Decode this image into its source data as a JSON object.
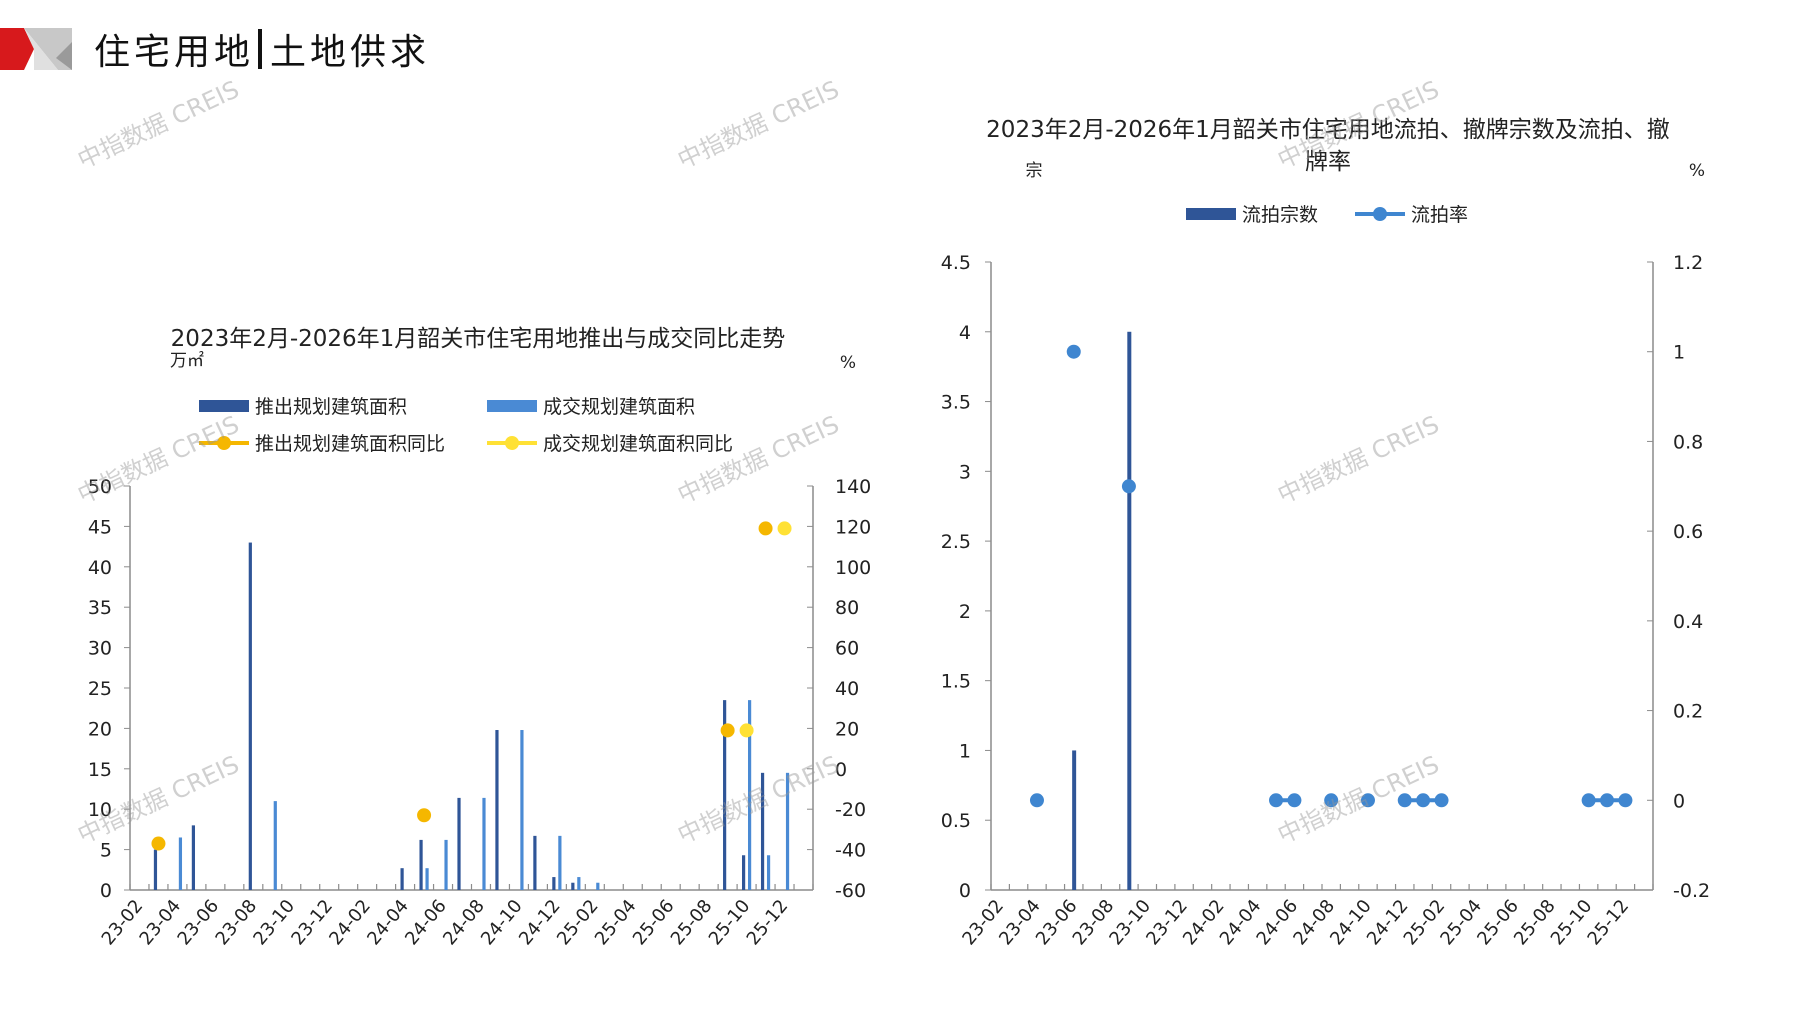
{
  "header": {
    "title_left": "住宅用地",
    "title_right": "土地供求"
  },
  "watermark": "中指数据 CREIS",
  "colors": {
    "launch_bar": "#2f5597",
    "deal_bar": "#4a8ad4",
    "launch_yoy": "#f5b700",
    "deal_yoy": "#ffe135",
    "fail_bar": "#2f5597",
    "fail_rate": "#3f86d0",
    "axis": "#8c8c8c",
    "logo_red": "#d7191c",
    "logo_grey": "#bfbfbf"
  },
  "chart_data": [
    {
      "type": "bar+line",
      "title": "2023年2月-2026年1月韶关市住宅用地推出与成交同比走势",
      "ylabel": "万㎡",
      "y2label": "%",
      "ylim": [
        0,
        50
      ],
      "y2lim": [
        -60,
        140
      ],
      "yticks": [
        "0",
        "5",
        "10",
        "15",
        "20",
        "25",
        "30",
        "35",
        "40",
        "45",
        "50"
      ],
      "y2ticks": [
        "-60",
        "-40",
        "-20",
        "0",
        "20",
        "40",
        "60",
        "80",
        "100",
        "120",
        "140"
      ],
      "categories": [
        "23-02",
        "23-03",
        "23-04",
        "23-05",
        "23-06",
        "23-07",
        "23-08",
        "23-09",
        "23-10",
        "23-11",
        "23-12",
        "24-01",
        "24-02",
        "24-03",
        "24-04",
        "24-05",
        "24-06",
        "24-07",
        "24-08",
        "24-09",
        "24-10",
        "24-11",
        "24-12",
        "25-01",
        "25-02",
        "25-03",
        "25-04",
        "25-05",
        "25-06",
        "25-07",
        "25-08",
        "25-09",
        "25-10",
        "25-11",
        "25-12",
        "26-01"
      ],
      "xtick_labels": [
        "23-02",
        "23-04",
        "23-06",
        "23-08",
        "23-10",
        "23-12",
        "24-02",
        "24-04",
        "24-06",
        "24-08",
        "24-10",
        "24-12",
        "25-02",
        "25-04",
        "25-06",
        "25-08",
        "25-10",
        "25-12"
      ],
      "series": [
        {
          "name": "推出规划建筑面积",
          "kind": "bar",
          "axis": "left",
          "values": [
            0,
            5,
            0,
            8,
            0,
            0,
            43,
            0,
            0,
            0,
            0,
            0,
            0,
            0,
            2.7,
            6.2,
            0,
            11.4,
            0,
            19.8,
            0,
            6.7,
            1.6,
            0.9,
            0,
            0,
            0,
            0,
            0,
            0,
            0,
            23.5,
            4.3,
            14.5,
            0,
            0
          ]
        },
        {
          "name": "成交规划建筑面积",
          "kind": "bar",
          "axis": "left",
          "values": [
            0,
            0,
            6.5,
            0,
            0,
            0,
            0,
            11,
            0,
            0,
            0,
            0,
            0,
            0,
            0,
            2.7,
            6.2,
            0,
            11.4,
            0,
            19.8,
            0,
            6.7,
            1.6,
            0.9,
            0,
            0,
            0,
            0,
            0,
            0,
            0,
            23.5,
            4.3,
            14.5,
            0
          ]
        },
        {
          "name": "推出规划建筑面积同比",
          "kind": "line",
          "axis": "right",
          "values": [
            null,
            -37,
            null,
            null,
            null,
            null,
            null,
            null,
            null,
            null,
            null,
            null,
            null,
            null,
            null,
            -23,
            null,
            null,
            null,
            null,
            null,
            null,
            null,
            null,
            null,
            null,
            null,
            null,
            null,
            null,
            null,
            19,
            null,
            119,
            null,
            null
          ]
        },
        {
          "name": "成交规划建筑面积同比",
          "kind": "line",
          "axis": "right",
          "values": [
            null,
            null,
            null,
            null,
            null,
            null,
            null,
            null,
            null,
            null,
            null,
            null,
            null,
            null,
            null,
            null,
            null,
            null,
            null,
            null,
            null,
            null,
            null,
            null,
            null,
            null,
            null,
            null,
            null,
            null,
            null,
            null,
            19,
            null,
            119,
            null
          ]
        }
      ],
      "legend": "top"
    },
    {
      "type": "bar+line",
      "title_lines": [
        "2023年2月-2026年1月韶关市住宅用地流拍、撤牌宗数及流拍、撤",
        "牌率"
      ],
      "ylabel": "宗",
      "y2label": "%",
      "ylim": [
        0,
        4.5
      ],
      "y2lim": [
        -0.2,
        1.2
      ],
      "yticks": [
        "0",
        "0.5",
        "1",
        "1.5",
        "2",
        "2.5",
        "3",
        "3.5",
        "4",
        "4.5"
      ],
      "y2ticks": [
        "-0.2",
        "0",
        "0.2",
        "0.4",
        "0.6",
        "0.8",
        "1",
        "1.2"
      ],
      "categories": [
        "23-02",
        "23-03",
        "23-04",
        "23-05",
        "23-06",
        "23-07",
        "23-08",
        "23-09",
        "23-10",
        "23-11",
        "23-12",
        "24-01",
        "24-02",
        "24-03",
        "24-04",
        "24-05",
        "24-06",
        "24-07",
        "24-08",
        "24-09",
        "24-10",
        "24-11",
        "24-12",
        "25-01",
        "25-02",
        "25-03",
        "25-04",
        "25-05",
        "25-06",
        "25-07",
        "25-08",
        "25-09",
        "25-10",
        "25-11",
        "25-12",
        "26-01"
      ],
      "xtick_labels": [
        "23-02",
        "23-04",
        "23-06",
        "23-08",
        "23-10",
        "23-12",
        "24-02",
        "24-04",
        "24-06",
        "24-08",
        "24-10",
        "24-12",
        "25-02",
        "25-04",
        "25-06",
        "25-08",
        "25-10",
        "25-12"
      ],
      "series": [
        {
          "name": "流拍宗数",
          "kind": "bar",
          "axis": "left",
          "values": [
            0,
            0,
            0,
            0,
            1,
            0,
            0,
            4,
            0,
            0,
            0,
            0,
            0,
            0,
            0,
            0,
            0,
            0,
            0,
            0,
            0,
            0,
            0,
            0,
            0,
            0,
            0,
            0,
            0,
            0,
            0,
            0,
            0,
            0,
            0,
            0
          ]
        },
        {
          "name": "流拍率",
          "kind": "line",
          "axis": "right",
          "values": [
            null,
            null,
            0,
            null,
            1,
            null,
            null,
            0.7,
            null,
            null,
            null,
            null,
            null,
            null,
            null,
            0,
            0,
            null,
            0,
            null,
            0,
            null,
            0,
            0,
            0,
            null,
            null,
            null,
            null,
            null,
            null,
            null,
            0,
            0,
            0,
            null
          ]
        }
      ],
      "legend": "top"
    }
  ]
}
